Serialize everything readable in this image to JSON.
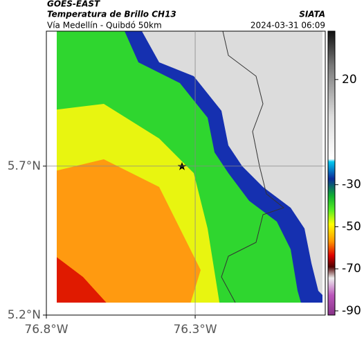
{
  "map": {
    "satellite": "GOES-EAST",
    "title": "Temperatura de Brillo CH13",
    "subtitle": "Vía Medellín - Quibdó 50km",
    "source": "SIATA",
    "datetime": "2024-03-31 06:09",
    "lonlim": [
      -76.8,
      -75.863
    ],
    "latlim": [
      5.2,
      6.153
    ],
    "lon_ticks": [
      {
        "value": -76.8,
        "label": "76.8°W"
      },
      {
        "value": -76.3,
        "label": "76.3°W"
      }
    ],
    "lat_ticks": [
      {
        "value": 5.2,
        "label": "5.2°N"
      },
      {
        "value": 5.7,
        "label": "5.7°N"
      }
    ],
    "colorbar": {
      "lim": [
        -92,
        43
      ],
      "ticks": [
        20,
        -30,
        -50,
        -70,
        -90
      ]
    }
  }
}
